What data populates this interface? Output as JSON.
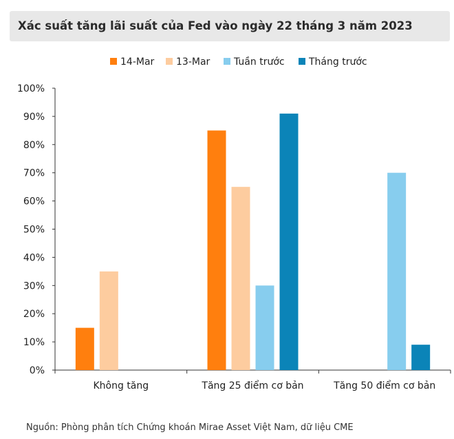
{
  "title": "Xác suất tăng lãi suất của Fed vào ngày 22 tháng 3 năm 2023",
  "source": "Nguồn: Phòng phân tích Chứng khoán Mirae Asset Việt Nam, dữ liệu CME",
  "chart_data": {
    "type": "bar",
    "categories": [
      "Không tăng",
      "Tăng 25 điểm cơ bản",
      "Tăng 50 điểm cơ bản"
    ],
    "series": [
      {
        "name": "14-Mar",
        "color": "#ff7f0e",
        "values": [
          15,
          85,
          0
        ]
      },
      {
        "name": "13-Mar",
        "color": "#fdcc9f",
        "values": [
          35,
          65,
          0
        ]
      },
      {
        "name": "Tuần trước",
        "color": "#87cdee",
        "values": [
          0,
          30,
          70
        ]
      },
      {
        "name": "Tháng trước",
        "color": "#0b84b8",
        "values": [
          0,
          91,
          9
        ]
      }
    ],
    "ylim": [
      0,
      100
    ],
    "yticks": [
      "0%",
      "10%",
      "20%",
      "30%",
      "40%",
      "50%",
      "60%",
      "70%",
      "80%",
      "90%",
      "100%"
    ],
    "legend_position": "top",
    "grid": false
  }
}
